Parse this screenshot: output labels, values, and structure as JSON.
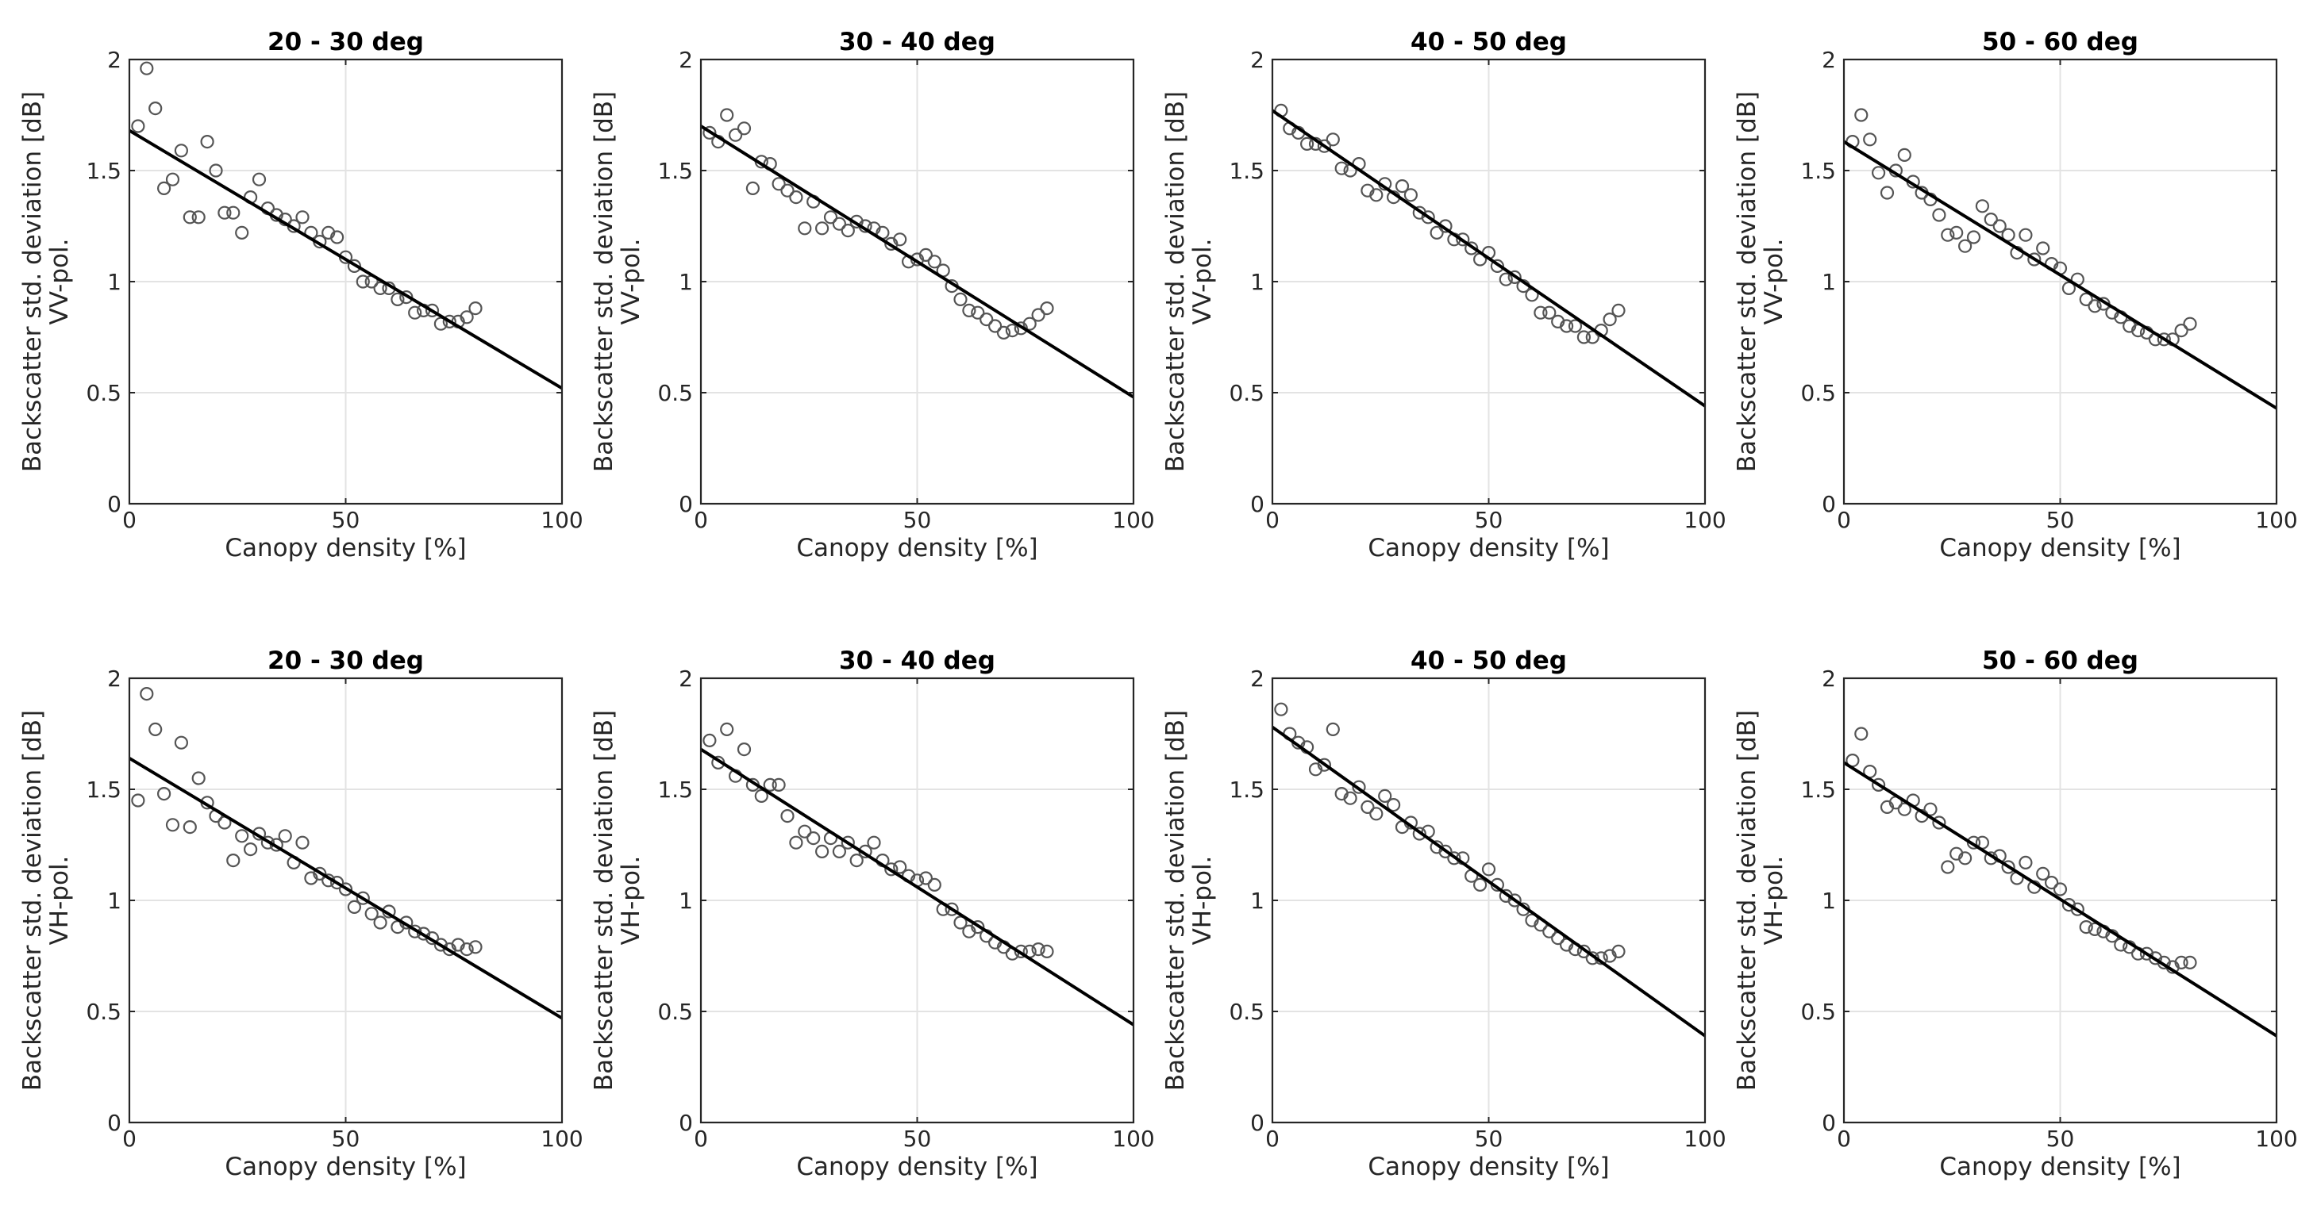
{
  "chart_data": [
    {
      "type": "scatter",
      "title": "20 - 30 deg",
      "xlabel": "Canopy density [%]",
      "ylabel": [
        "Backscatter std. deviation [dB]",
        "VV-pol."
      ],
      "xlim": [
        0,
        100
      ],
      "ylim": [
        0,
        2
      ],
      "xticks": [
        "0",
        "50",
        "100"
      ],
      "yticks": [
        "0",
        "0.5",
        "1",
        "1.5",
        "2"
      ],
      "grid": true,
      "fit": {
        "x": [
          0,
          100
        ],
        "y": [
          1.68,
          0.52
        ]
      },
      "points": {
        "x": [
          2,
          4,
          6,
          8,
          10,
          12,
          14,
          16,
          18,
          20,
          22,
          24,
          26,
          28,
          30,
          32,
          34,
          36,
          38,
          40,
          42,
          44,
          46,
          48,
          50,
          52,
          54,
          56,
          58,
          60,
          62,
          64,
          66,
          68,
          70,
          72,
          74,
          76,
          78,
          80
        ],
        "y": [
          1.7,
          1.96,
          1.78,
          1.42,
          1.46,
          1.59,
          1.29,
          1.29,
          1.63,
          1.5,
          1.31,
          1.31,
          1.22,
          1.38,
          1.46,
          1.33,
          1.3,
          1.28,
          1.25,
          1.29,
          1.22,
          1.18,
          1.22,
          1.2,
          1.11,
          1.07,
          1.0,
          1.0,
          0.97,
          0.97,
          0.92,
          0.93,
          0.86,
          0.87,
          0.87,
          0.81,
          0.82,
          0.82,
          0.84,
          0.88
        ]
      }
    },
    {
      "type": "scatter",
      "title": "30 - 40 deg",
      "xlabel": "Canopy density [%]",
      "ylabel": [
        "Backscatter std. deviation [dB]",
        "VV-pol."
      ],
      "xlim": [
        0,
        100
      ],
      "ylim": [
        0,
        2
      ],
      "xticks": [
        "0",
        "50",
        "100"
      ],
      "yticks": [
        "0",
        "0.5",
        "1",
        "1.5",
        "2"
      ],
      "grid": true,
      "fit": {
        "x": [
          0,
          100
        ],
        "y": [
          1.7,
          0.48
        ]
      },
      "points": {
        "x": [
          2,
          4,
          6,
          8,
          10,
          12,
          14,
          16,
          18,
          20,
          22,
          24,
          26,
          28,
          30,
          32,
          34,
          36,
          38,
          40,
          42,
          44,
          46,
          48,
          50,
          52,
          54,
          56,
          58,
          60,
          62,
          64,
          66,
          68,
          70,
          72,
          74,
          76,
          78,
          80
        ],
        "y": [
          1.67,
          1.63,
          1.75,
          1.66,
          1.69,
          1.42,
          1.54,
          1.53,
          1.44,
          1.41,
          1.38,
          1.24,
          1.36,
          1.24,
          1.29,
          1.26,
          1.23,
          1.27,
          1.25,
          1.24,
          1.22,
          1.17,
          1.19,
          1.09,
          1.1,
          1.12,
          1.09,
          1.05,
          0.98,
          0.92,
          0.87,
          0.86,
          0.83,
          0.8,
          0.77,
          0.78,
          0.79,
          0.81,
          0.85,
          0.88
        ]
      }
    },
    {
      "type": "scatter",
      "title": "40 - 50 deg",
      "xlabel": "Canopy density [%]",
      "ylabel": [
        "Backscatter std. deviation [dB]",
        "VV-pol."
      ],
      "xlim": [
        0,
        100
      ],
      "ylim": [
        0,
        2
      ],
      "xticks": [
        "0",
        "50",
        "100"
      ],
      "yticks": [
        "0",
        "0.5",
        "1",
        "1.5",
        "2"
      ],
      "grid": true,
      "fit": {
        "x": [
          0,
          100
        ],
        "y": [
          1.77,
          0.44
        ]
      },
      "points": {
        "x": [
          2,
          4,
          6,
          8,
          10,
          12,
          14,
          16,
          18,
          20,
          22,
          24,
          26,
          28,
          30,
          32,
          34,
          36,
          38,
          40,
          42,
          44,
          46,
          48,
          50,
          52,
          54,
          56,
          58,
          60,
          62,
          64,
          66,
          68,
          70,
          72,
          74,
          76,
          78,
          80
        ],
        "y": [
          1.77,
          1.69,
          1.67,
          1.62,
          1.62,
          1.61,
          1.64,
          1.51,
          1.5,
          1.53,
          1.41,
          1.39,
          1.44,
          1.38,
          1.43,
          1.39,
          1.31,
          1.29,
          1.22,
          1.25,
          1.19,
          1.19,
          1.15,
          1.1,
          1.13,
          1.07,
          1.01,
          1.02,
          0.98,
          0.94,
          0.86,
          0.86,
          0.82,
          0.8,
          0.8,
          0.75,
          0.75,
          0.78,
          0.83,
          0.87
        ]
      }
    },
    {
      "type": "scatter",
      "title": "50 - 60 deg",
      "xlabel": "Canopy density [%]",
      "ylabel": [
        "Backscatter std. deviation [dB]",
        "VV-pol."
      ],
      "xlim": [
        0,
        100
      ],
      "ylim": [
        0,
        2
      ],
      "xticks": [
        "0",
        "50",
        "100"
      ],
      "yticks": [
        "0",
        "0.5",
        "1",
        "1.5",
        "2"
      ],
      "grid": true,
      "fit": {
        "x": [
          0,
          100
        ],
        "y": [
          1.63,
          0.43
        ]
      },
      "points": {
        "x": [
          2,
          4,
          6,
          8,
          10,
          12,
          14,
          16,
          18,
          20,
          22,
          24,
          26,
          28,
          30,
          32,
          34,
          36,
          38,
          40,
          42,
          44,
          46,
          48,
          50,
          52,
          54,
          56,
          58,
          60,
          62,
          64,
          66,
          68,
          70,
          72,
          74,
          76,
          78,
          80
        ],
        "y": [
          1.63,
          1.75,
          1.64,
          1.49,
          1.4,
          1.5,
          1.57,
          1.45,
          1.4,
          1.37,
          1.3,
          1.21,
          1.22,
          1.16,
          1.2,
          1.34,
          1.28,
          1.25,
          1.21,
          1.13,
          1.21,
          1.1,
          1.15,
          1.08,
          1.06,
          0.97,
          1.01,
          0.92,
          0.89,
          0.9,
          0.86,
          0.84,
          0.8,
          0.78,
          0.77,
          0.74,
          0.74,
          0.74,
          0.78,
          0.81
        ]
      }
    },
    {
      "type": "scatter",
      "title": "20 - 30 deg",
      "xlabel": "Canopy density [%]",
      "ylabel": [
        "Backscatter std. deviation [dB]",
        "VH-pol."
      ],
      "xlim": [
        0,
        100
      ],
      "ylim": [
        0,
        2
      ],
      "xticks": [
        "0",
        "50",
        "100"
      ],
      "yticks": [
        "0",
        "0.5",
        "1",
        "1.5",
        "2"
      ],
      "grid": true,
      "fit": {
        "x": [
          0,
          100
        ],
        "y": [
          1.64,
          0.47
        ]
      },
      "points": {
        "x": [
          2,
          4,
          6,
          8,
          10,
          12,
          14,
          16,
          18,
          20,
          22,
          24,
          26,
          28,
          30,
          32,
          34,
          36,
          38,
          40,
          42,
          44,
          46,
          48,
          50,
          52,
          54,
          56,
          58,
          60,
          62,
          64,
          66,
          68,
          70,
          72,
          74,
          76,
          78,
          80
        ],
        "y": [
          1.45,
          1.93,
          1.77,
          1.48,
          1.34,
          1.71,
          1.33,
          1.55,
          1.44,
          1.38,
          1.35,
          1.18,
          1.29,
          1.23,
          1.3,
          1.26,
          1.25,
          1.29,
          1.17,
          1.26,
          1.1,
          1.12,
          1.09,
          1.08,
          1.05,
          0.97,
          1.01,
          0.94,
          0.9,
          0.95,
          0.88,
          0.9,
          0.86,
          0.85,
          0.83,
          0.8,
          0.78,
          0.8,
          0.78,
          0.79
        ]
      }
    },
    {
      "type": "scatter",
      "title": "30 - 40 deg",
      "xlabel": "Canopy density [%]",
      "ylabel": [
        "Backscatter std. deviation [dB]",
        "VH-pol."
      ],
      "xlim": [
        0,
        100
      ],
      "ylim": [
        0,
        2
      ],
      "xticks": [
        "0",
        "50",
        "100"
      ],
      "yticks": [
        "0",
        "0.5",
        "1",
        "1.5",
        "2"
      ],
      "grid": true,
      "fit": {
        "x": [
          0,
          100
        ],
        "y": [
          1.68,
          0.44
        ]
      },
      "points": {
        "x": [
          2,
          4,
          6,
          8,
          10,
          12,
          14,
          16,
          18,
          20,
          22,
          24,
          26,
          28,
          30,
          32,
          34,
          36,
          38,
          40,
          42,
          44,
          46,
          48,
          50,
          52,
          54,
          56,
          58,
          60,
          62,
          64,
          66,
          68,
          70,
          72,
          74,
          76,
          78,
          80
        ],
        "y": [
          1.72,
          1.62,
          1.77,
          1.56,
          1.68,
          1.52,
          1.47,
          1.52,
          1.52,
          1.38,
          1.26,
          1.31,
          1.28,
          1.22,
          1.28,
          1.22,
          1.26,
          1.18,
          1.22,
          1.26,
          1.18,
          1.14,
          1.15,
          1.11,
          1.09,
          1.1,
          1.07,
          0.96,
          0.96,
          0.9,
          0.86,
          0.88,
          0.84,
          0.81,
          0.79,
          0.76,
          0.77,
          0.77,
          0.78,
          0.77
        ]
      }
    },
    {
      "type": "scatter",
      "title": "40 - 50 deg",
      "xlabel": "Canopy density [%]",
      "ylabel": [
        "Backscatter std. deviation [dB]",
        "VH-pol."
      ],
      "xlim": [
        0,
        100
      ],
      "ylim": [
        0,
        2
      ],
      "xticks": [
        "0",
        "50",
        "100"
      ],
      "yticks": [
        "0",
        "0.5",
        "1",
        "1.5",
        "2"
      ],
      "grid": true,
      "fit": {
        "x": [
          0,
          100
        ],
        "y": [
          1.78,
          0.39
        ]
      },
      "points": {
        "x": [
          2,
          4,
          6,
          8,
          10,
          12,
          14,
          16,
          18,
          20,
          22,
          24,
          26,
          28,
          30,
          32,
          34,
          36,
          38,
          40,
          42,
          44,
          46,
          48,
          50,
          52,
          54,
          56,
          58,
          60,
          62,
          64,
          66,
          68,
          70,
          72,
          74,
          76,
          78,
          80
        ],
        "y": [
          1.86,
          1.75,
          1.71,
          1.69,
          1.59,
          1.61,
          1.77,
          1.48,
          1.46,
          1.51,
          1.42,
          1.39,
          1.47,
          1.43,
          1.33,
          1.35,
          1.3,
          1.31,
          1.24,
          1.22,
          1.19,
          1.19,
          1.11,
          1.07,
          1.14,
          1.07,
          1.02,
          1.0,
          0.96,
          0.91,
          0.89,
          0.86,
          0.83,
          0.8,
          0.78,
          0.77,
          0.74,
          0.74,
          0.75,
          0.77
        ]
      }
    },
    {
      "type": "scatter",
      "title": "50 - 60 deg",
      "xlabel": "Canopy density [%]",
      "ylabel": [
        "Backscatter std. deviation [dB]",
        "VH-pol."
      ],
      "xlim": [
        0,
        100
      ],
      "ylim": [
        0,
        2
      ],
      "xticks": [
        "0",
        "50",
        "100"
      ],
      "yticks": [
        "0",
        "0.5",
        "1",
        "1.5",
        "2"
      ],
      "grid": true,
      "fit": {
        "x": [
          0,
          100
        ],
        "y": [
          1.62,
          0.39
        ]
      },
      "points": {
        "x": [
          2,
          4,
          6,
          8,
          10,
          12,
          14,
          16,
          18,
          20,
          22,
          24,
          26,
          28,
          30,
          32,
          34,
          36,
          38,
          40,
          42,
          44,
          46,
          48,
          50,
          52,
          54,
          56,
          58,
          60,
          62,
          64,
          66,
          68,
          70,
          72,
          74,
          76,
          78,
          80
        ],
        "y": [
          1.63,
          1.75,
          1.58,
          1.52,
          1.42,
          1.44,
          1.41,
          1.45,
          1.38,
          1.41,
          1.35,
          1.15,
          1.21,
          1.19,
          1.26,
          1.26,
          1.19,
          1.2,
          1.15,
          1.1,
          1.17,
          1.06,
          1.12,
          1.08,
          1.05,
          0.98,
          0.96,
          0.88,
          0.87,
          0.86,
          0.84,
          0.8,
          0.79,
          0.76,
          0.76,
          0.74,
          0.72,
          0.7,
          0.72,
          0.72
        ]
      }
    }
  ]
}
